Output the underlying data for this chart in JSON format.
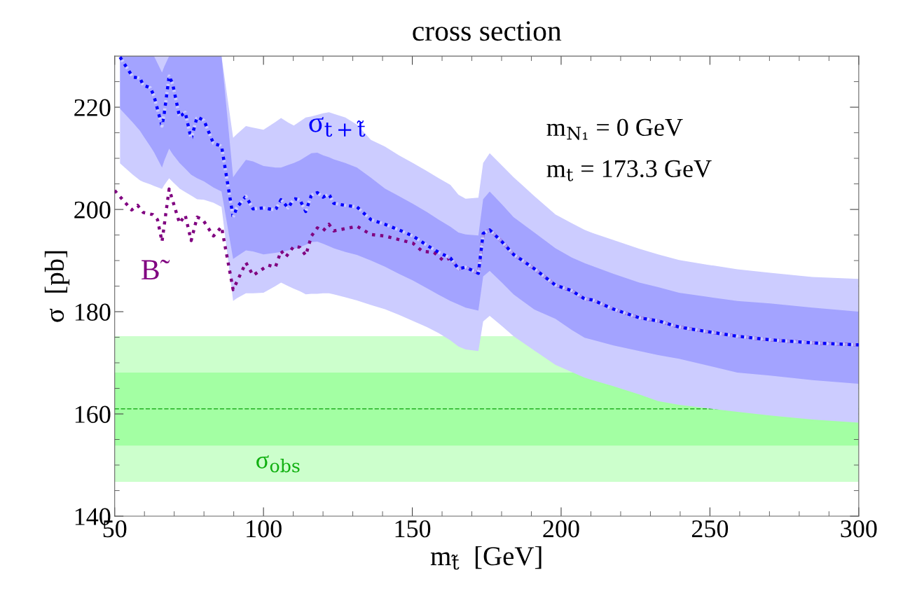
{
  "chart_data": {
    "type": "line",
    "title": "cross section",
    "xlabel": "m$_{t̃}$  [GeV]",
    "ylabel": "σ  [pb]",
    "xlim": [
      50,
      300
    ],
    "ylim": [
      140,
      230
    ],
    "xticks": [
      50,
      {
        "value": 60,
        "label": null
      },
      {
        "value": 70,
        "label": null
      },
      {
        "value": 80,
        "label": null
      },
      {
        "value": 90,
        "label": null
      },
      100,
      {
        "value": 110,
        "label": null
      },
      {
        "value": 120,
        "label": null
      },
      {
        "value": 130,
        "label": null
      },
      {
        "value": 140,
        "label": null
      },
      150,
      {
        "value": 160,
        "label": null
      },
      {
        "value": 170,
        "label": null
      },
      {
        "value": 180,
        "label": null
      },
      {
        "value": 190,
        "label": null
      },
      200,
      {
        "value": 210,
        "label": null
      },
      {
        "value": 220,
        "label": null
      },
      {
        "value": 230,
        "label": null
      },
      {
        "value": 240,
        "label": null
      },
      250,
      {
        "value": 260,
        "label": null
      },
      {
        "value": 270,
        "label": null
      },
      {
        "value": 280,
        "label": null
      },
      {
        "value": 290,
        "label": null
      },
      300
    ],
    "yticks": [
      140,
      {
        "value": 145,
        "label": null
      },
      {
        "value": 150,
        "label": null
      },
      {
        "value": 155,
        "label": null
      },
      160,
      {
        "value": 165,
        "label": null
      },
      {
        "value": 170,
        "label": null
      },
      {
        "value": 175,
        "label": null
      },
      180,
      {
        "value": 185,
        "label": null
      },
      {
        "value": 190,
        "label": null
      },
      {
        "value": 195,
        "label": null
      },
      200,
      {
        "value": 205,
        "label": null
      },
      {
        "value": 210,
        "label": null
      },
      {
        "value": 215,
        "label": null
      },
      220,
      {
        "value": 225,
        "label": null
      }
    ],
    "grid": false,
    "legend": false,
    "bands": [
      {
        "axis": "y",
        "from": 146.7,
        "to": 175.2,
        "color": "#ccffcc",
        "label": "σ$_{obs}$"
      },
      {
        "axis": "y",
        "from": 153.8,
        "to": 168.1,
        "color": "#a3ffa3"
      }
    ],
    "ref_lines": [
      {
        "axis": "y",
        "value": 161.0,
        "color": "#22b022",
        "line_style": "dashed"
      }
    ],
    "annotations": [
      "m$_{N₁}$ = 0 GeV",
      "m$_{t}$ = 173.3 GeV"
    ],
    "series": [
      {
        "color": "#ccccff",
        "line_style": "dotted",
        "x": [
          51.8,
          56.1,
          58.5,
          59.6,
          62.0,
          63.2,
          65.9,
          66.7,
          68.3,
          69.5,
          71.8,
          73.7,
          75.7,
          77.7,
          80.0,
          83.2,
          85.9,
          89.8,
          91.0,
          94.1,
          96.5,
          100.0,
          104.0,
          105.9,
          108.3,
          110.2,
          112.2,
          114.2,
          116.1,
          118.1,
          120.0,
          122.0,
          123.6,
          127.5,
          131.4,
          136.1,
          140.8,
          145.5,
          150.2,
          154.9,
          158.9,
          162.8,
          165.5,
          167.9,
          172.2,
          173.8,
          176.0,
          180.1,
          184.0,
          186.3,
          191.0,
          198.1,
          203.6,
          207.9,
          210.6,
          217.6,
          226.3,
          232.6,
          239.6,
          249.1,
          259.2,
          270.2,
          284.4,
          300
        ],
        "values": [
          229.8,
          225.9,
          225.7,
          224.3,
          223.8,
          222.2,
          216.3,
          219.0,
          226.1,
          224.5,
          218.1,
          219.0,
          213.8,
          218.1,
          217.4,
          212.9,
          212.4,
          198.5,
          200.3,
          202.6,
          200.1,
          200.3,
          199.9,
          201.9,
          200.3,
          202.1,
          201.9,
          199.6,
          202.8,
          203.3,
          202.4,
          203.0,
          201.2,
          200.8,
          200.5,
          198.0,
          197.1,
          196.0,
          194.8,
          193.0,
          191.6,
          190.5,
          188.4,
          188.7,
          187.5,
          195.3,
          196.0,
          193.7,
          191.2,
          190.3,
          188.4,
          185.2,
          184.1,
          182.5,
          182.3,
          180.5,
          178.8,
          178.2,
          177.0,
          176.1,
          175.2,
          174.5,
          173.9,
          173.5
        ],
        "upper": [
          230,
          230,
          230,
          230,
          230,
          230,
          230,
          230,
          230,
          230,
          230,
          230,
          230,
          230,
          230,
          230,
          230,
          214.0,
          214.7,
          216.3,
          216.0,
          215.6,
          217.1,
          217.9,
          217.0,
          216.4,
          217.2,
          218.0,
          218.2,
          218.5,
          218.8,
          219.0,
          218.7,
          218.0,
          216.6,
          213.6,
          212.3,
          210.6,
          209.1,
          207.5,
          206.1,
          204.8,
          202.9,
          202.1,
          202.3,
          209.1,
          211.0,
          208.6,
          206.3,
          205.1,
          202.6,
          199.0,
          197.3,
          196.0,
          195.4,
          194.0,
          192.3,
          191.2,
          190.1,
          189.2,
          188.3,
          187.6,
          186.8,
          186.4
        ],
        "lower": [
          209.0,
          206.8,
          205.7,
          205.4,
          204.9,
          204.6,
          204.0,
          204.8,
          206.1,
          205.4,
          204.1,
          203.4,
          202.7,
          202.0,
          201.9,
          201.3,
          200.5,
          182.1,
          182.6,
          183.6,
          183.6,
          183.7,
          185.0,
          185.7,
          185.0,
          184.5,
          184.0,
          183.4,
          183.5,
          183.5,
          183.6,
          183.6,
          183.4,
          182.8,
          182.2,
          181.3,
          180.5,
          179.4,
          178.2,
          177.0,
          175.8,
          174.4,
          173.2,
          172.6,
          172.3,
          178.1,
          179.2,
          177.2,
          175.2,
          174.3,
          172.4,
          169.6,
          168.2,
          167.1,
          166.6,
          165.4,
          163.8,
          162.5,
          161.8,
          161.1,
          160.4,
          159.7,
          158.9,
          158.3
        ]
      },
      {
        "color": "#a3a3ff",
        "line_style": "dotted",
        "x": [
          51.8,
          56.1,
          58.5,
          59.6,
          62.0,
          63.2,
          65.9,
          66.7,
          68.3,
          69.5,
          71.8,
          73.7,
          75.7,
          77.7,
          80.0,
          83.2,
          85.9,
          89.8,
          91.0,
          94.1,
          96.5,
          100.0,
          104.0,
          105.9,
          108.3,
          110.2,
          112.2,
          114.2,
          116.1,
          118.1,
          120.0,
          122.0,
          123.6,
          127.5,
          131.4,
          136.1,
          140.8,
          145.5,
          150.2,
          154.9,
          158.9,
          162.8,
          165.5,
          167.9,
          172.2,
          173.8,
          176.0,
          180.1,
          184.0,
          186.3,
          191.0,
          198.1,
          203.6,
          207.9,
          210.6,
          217.6,
          226.3,
          232.6,
          239.6,
          249.1,
          259.2,
          270.2,
          284.4,
          300
        ],
        "values": [
          229.8,
          225.9,
          225.7,
          224.3,
          223.8,
          222.2,
          216.3,
          219.0,
          226.1,
          224.5,
          218.1,
          219.0,
          213.8,
          218.1,
          217.4,
          212.9,
          212.4,
          198.5,
          200.3,
          202.6,
          200.1,
          200.3,
          199.9,
          201.9,
          200.3,
          202.1,
          201.9,
          199.6,
          202.8,
          203.3,
          202.4,
          203.0,
          201.2,
          200.8,
          200.5,
          198.0,
          197.1,
          196.0,
          194.8,
          193.0,
          191.6,
          190.5,
          188.4,
          188.7,
          187.5,
          195.3,
          196.0,
          193.7,
          191.2,
          190.3,
          188.4,
          185.2,
          184.1,
          182.5,
          182.3,
          180.5,
          178.8,
          178.2,
          177.0,
          176.1,
          175.2,
          174.5,
          173.9,
          173.5
        ],
        "upper": [
          230,
          230,
          230,
          230,
          230,
          230,
          226.8,
          228.0,
          230,
          230,
          230,
          230,
          230,
          230,
          230,
          230,
          230,
          206.3,
          207.3,
          209.7,
          209.4,
          208.5,
          208.2,
          208.2,
          208.7,
          209.1,
          209.6,
          210.3,
          211.0,
          211.1,
          210.6,
          210.2,
          209.8,
          209.1,
          208.2,
          206.2,
          204.1,
          202.6,
          201.1,
          199.5,
          198.0,
          196.6,
          195.5,
          195.1,
          194.9,
          202.0,
          203.5,
          201.0,
          198.5,
          197.5,
          195.5,
          192.4,
          190.6,
          189.5,
          188.9,
          187.4,
          185.7,
          184.8,
          183.7,
          182.9,
          182.1,
          181.6,
          180.8,
          180.0
        ],
        "lower": [
          219.7,
          217.0,
          215.4,
          214.4,
          212.3,
          211.2,
          208.2,
          209.6,
          211.9,
          210.8,
          209.1,
          208.0,
          206.8,
          206.1,
          205.5,
          204.3,
          203.5,
          190.3,
          190.8,
          192.0,
          191.8,
          191.2,
          191.5,
          191.7,
          192.0,
          192.3,
          192.6,
          193.1,
          193.6,
          193.7,
          193.3,
          192.8,
          192.4,
          191.7,
          191.1,
          190.0,
          188.8,
          187.4,
          186.1,
          184.6,
          183.3,
          182.1,
          181.4,
          180.8,
          180.2,
          186.9,
          188.0,
          185.7,
          183.4,
          182.4,
          180.4,
          178.6,
          176.4,
          174.9,
          174.5,
          173.4,
          172.3,
          171.5,
          170.8,
          169.5,
          168.1,
          167.5,
          166.6,
          165.9
        ]
      },
      {
        "name": "B̃",
        "color": "#800080",
        "line_style": "dotted",
        "x": [
          50,
          55.7,
          57.7,
          59.6,
          62.8,
          64.4,
          65.9,
          68.3,
          71.8,
          73.7,
          75.7,
          77.7,
          79.6,
          83.2,
          85.9,
          89.8,
          94.1,
          96.5,
          101.6,
          104.0,
          105.9,
          107.5,
          110.2,
          112.2,
          114.2,
          116.1,
          118.1,
          120.0,
          122.0,
          123.6,
          127.1,
          131.4,
          136.1,
          140.8,
          145.5,
          150.2,
          153.4,
          157.3,
          160.4,
          162.8,
          165.5,
          167.9,
          172.2,
          173.8,
          176.0,
          180.1,
          184.0,
          186.3,
          191.0,
          198.1,
          203.6,
          207.9,
          210.6,
          217.6,
          226.3,
          232.6,
          239.6,
          249.1,
          259.2,
          270.2,
          284.4,
          300
        ],
        "values": [
          203.7,
          199.9,
          200.8,
          199.4,
          199.0,
          198.0,
          193.7,
          204.0,
          197.3,
          198.9,
          193.9,
          198.5,
          198.0,
          194.8,
          196.6,
          184.3,
          189.6,
          187.1,
          189.1,
          188.7,
          191.9,
          190.7,
          192.8,
          192.6,
          191.0,
          194.8,
          196.4,
          195.8,
          197.1,
          195.8,
          196.2,
          196.7,
          195.1,
          194.8,
          194.1,
          193.4,
          191.8,
          191.6,
          190.0,
          190.5,
          188.4,
          188.7,
          187.5,
          195.3,
          196.0,
          193.7,
          191.2,
          190.3,
          188.4,
          185.2,
          184.1,
          182.5,
          182.3,
          180.5,
          178.8,
          178.2,
          177.0,
          176.1,
          175.2,
          174.5,
          173.9,
          173.5
        ]
      },
      {
        "name": "σ$_{t+t̃}$",
        "color": "#0000ff",
        "line_style": "dotted",
        "x": [
          51.8,
          56.1,
          58.5,
          59.6,
          62.0,
          63.2,
          65.9,
          66.7,
          68.3,
          69.5,
          71.8,
          73.7,
          75.7,
          77.7,
          80.0,
          83.2,
          85.9,
          89.8,
          91.0,
          94.1,
          96.5,
          100.0,
          104.0,
          105.9,
          108.3,
          110.2,
          112.2,
          114.2,
          116.1,
          118.1,
          120.0,
          122.0,
          123.6,
          127.5,
          131.4,
          136.1,
          140.8,
          145.5,
          150.2,
          154.9,
          158.9,
          162.8,
          165.5,
          167.9,
          172.2,
          173.8,
          176.0,
          180.1,
          184.0,
          186.3,
          191.0,
          198.1,
          203.6,
          207.9,
          210.6,
          217.6,
          226.3,
          232.6,
          239.6,
          249.1,
          259.2,
          270.2,
          284.4,
          300
        ],
        "values": [
          229.8,
          225.9,
          225.7,
          224.3,
          223.8,
          222.2,
          216.3,
          219.0,
          226.1,
          224.5,
          218.1,
          219.0,
          213.8,
          218.1,
          217.4,
          212.9,
          212.4,
          198.5,
          200.3,
          202.6,
          200.1,
          200.3,
          199.9,
          201.9,
          200.3,
          202.1,
          201.9,
          199.6,
          202.8,
          203.3,
          202.4,
          203.0,
          201.2,
          200.8,
          200.5,
          198.0,
          197.1,
          196.0,
          194.8,
          193.0,
          191.6,
          190.5,
          188.4,
          188.7,
          187.5,
          195.3,
          196.0,
          193.7,
          191.2,
          190.3,
          188.4,
          185.2,
          184.1,
          182.5,
          182.3,
          180.5,
          178.8,
          178.2,
          177.0,
          176.1,
          175.2,
          174.5,
          173.9,
          173.5
        ]
      }
    ]
  }
}
